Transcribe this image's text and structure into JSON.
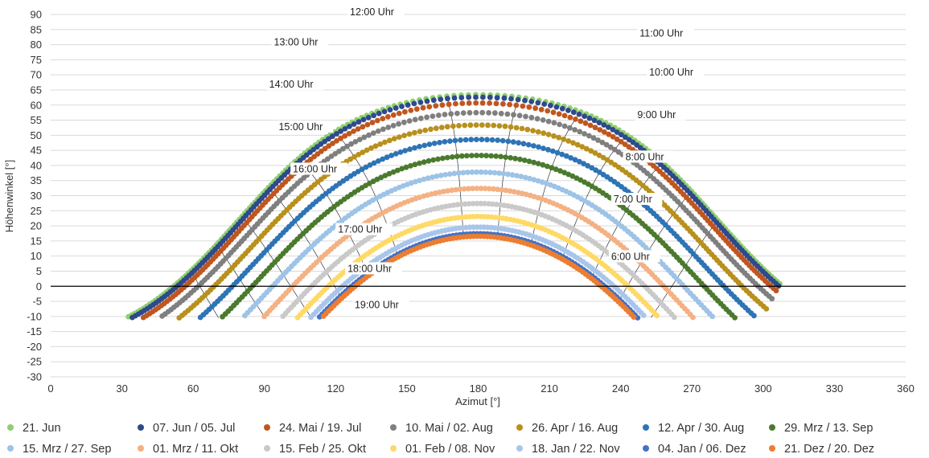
{
  "chart_data": {
    "type": "scatter",
    "title": "",
    "xlabel": "Azimut [°]",
    "ylabel": "Höhenwinkel [°]",
    "xlim": [
      0,
      360
    ],
    "ylim": [
      -30,
      90
    ],
    "xticks": [
      0,
      30,
      60,
      90,
      120,
      150,
      180,
      210,
      240,
      270,
      300,
      330,
      360
    ],
    "yticks": [
      -30,
      -25,
      -20,
      -15,
      -10,
      -5,
      0,
      5,
      10,
      15,
      20,
      25,
      30,
      35,
      40,
      45,
      50,
      55,
      60,
      65,
      70,
      75,
      80,
      85,
      90
    ],
    "grid": "horizontal",
    "legend_position": "bottom",
    "latitude_note": "",
    "series": [
      {
        "name": "21. Jun",
        "color": "#8fcf6f",
        "decl": 23.44
      },
      {
        "name": "07. Jun / 05. Jul",
        "color": "#2e4a8c",
        "decl": 22.6
      },
      {
        "name": "24. Mai / 19. Jul",
        "color": "#c0561f",
        "decl": 20.7
      },
      {
        "name": "10. Mai / 02. Aug",
        "color": "#7f7f7f",
        "decl": 17.5
      },
      {
        "name": "26. Apr / 16. Aug",
        "color": "#b8901c",
        "decl": 13.4
      },
      {
        "name": "12. Apr / 30. Aug",
        "color": "#2e74b5",
        "decl": 8.6
      },
      {
        "name": "29. Mrz / 13. Sep",
        "color": "#4b7a2e",
        "decl": 3.3
      },
      {
        "name": "15. Mrz / 27. Sep",
        "color": "#9dc3e6",
        "decl": -2.2
      },
      {
        "name": "01. Mrz / 11. Okt",
        "color": "#f4b183",
        "decl": -7.6
      },
      {
        "name": "15. Feb / 25. Okt",
        "color": "#c9c9c9",
        "decl": -12.6
      },
      {
        "name": "01. Feb / 08. Nov",
        "color": "#ffd966",
        "decl": -16.9
      },
      {
        "name": "18. Jan / 22. Nov",
        "color": "#a9c6ea",
        "decl": -20.4
      },
      {
        "name": "04. Jan / 06. Dez",
        "color": "#4472c4",
        "decl": -22.6
      },
      {
        "name": "21. Dez / 20. Dez",
        "color": "#ed7d31",
        "decl": -23.44
      }
    ],
    "hour_lines": [
      6,
      7,
      8,
      9,
      10,
      11,
      13,
      14,
      15,
      16,
      17,
      18,
      19
    ],
    "annotations": [
      {
        "text": "6:00 Uhr",
        "x": 236,
        "y": 9
      },
      {
        "text": "7:00 Uhr",
        "x": 237,
        "y": 28
      },
      {
        "text": "8:00 Uhr",
        "x": 242,
        "y": 42
      },
      {
        "text": "9:00 Uhr",
        "x": 247,
        "y": 56
      },
      {
        "text": "10:00 Uhr",
        "x": 252,
        "y": 70
      },
      {
        "text": "11:00 Uhr",
        "x": 248,
        "y": 83
      },
      {
        "text": "12:00 Uhr",
        "x": 126,
        "y": 90
      },
      {
        "text": "13:00 Uhr",
        "x": 94,
        "y": 80
      },
      {
        "text": "14:00 Uhr",
        "x": 92,
        "y": 66
      },
      {
        "text": "15:00 Uhr",
        "x": 96,
        "y": 52
      },
      {
        "text": "16:00 Uhr",
        "x": 102,
        "y": 38
      },
      {
        "text": "17:00 Uhr",
        "x": 121,
        "y": 18
      },
      {
        "text": "18:00 Uhr",
        "x": 125,
        "y": 5
      },
      {
        "text": "19:00 Uhr",
        "x": 128,
        "y": -7
      }
    ]
  }
}
